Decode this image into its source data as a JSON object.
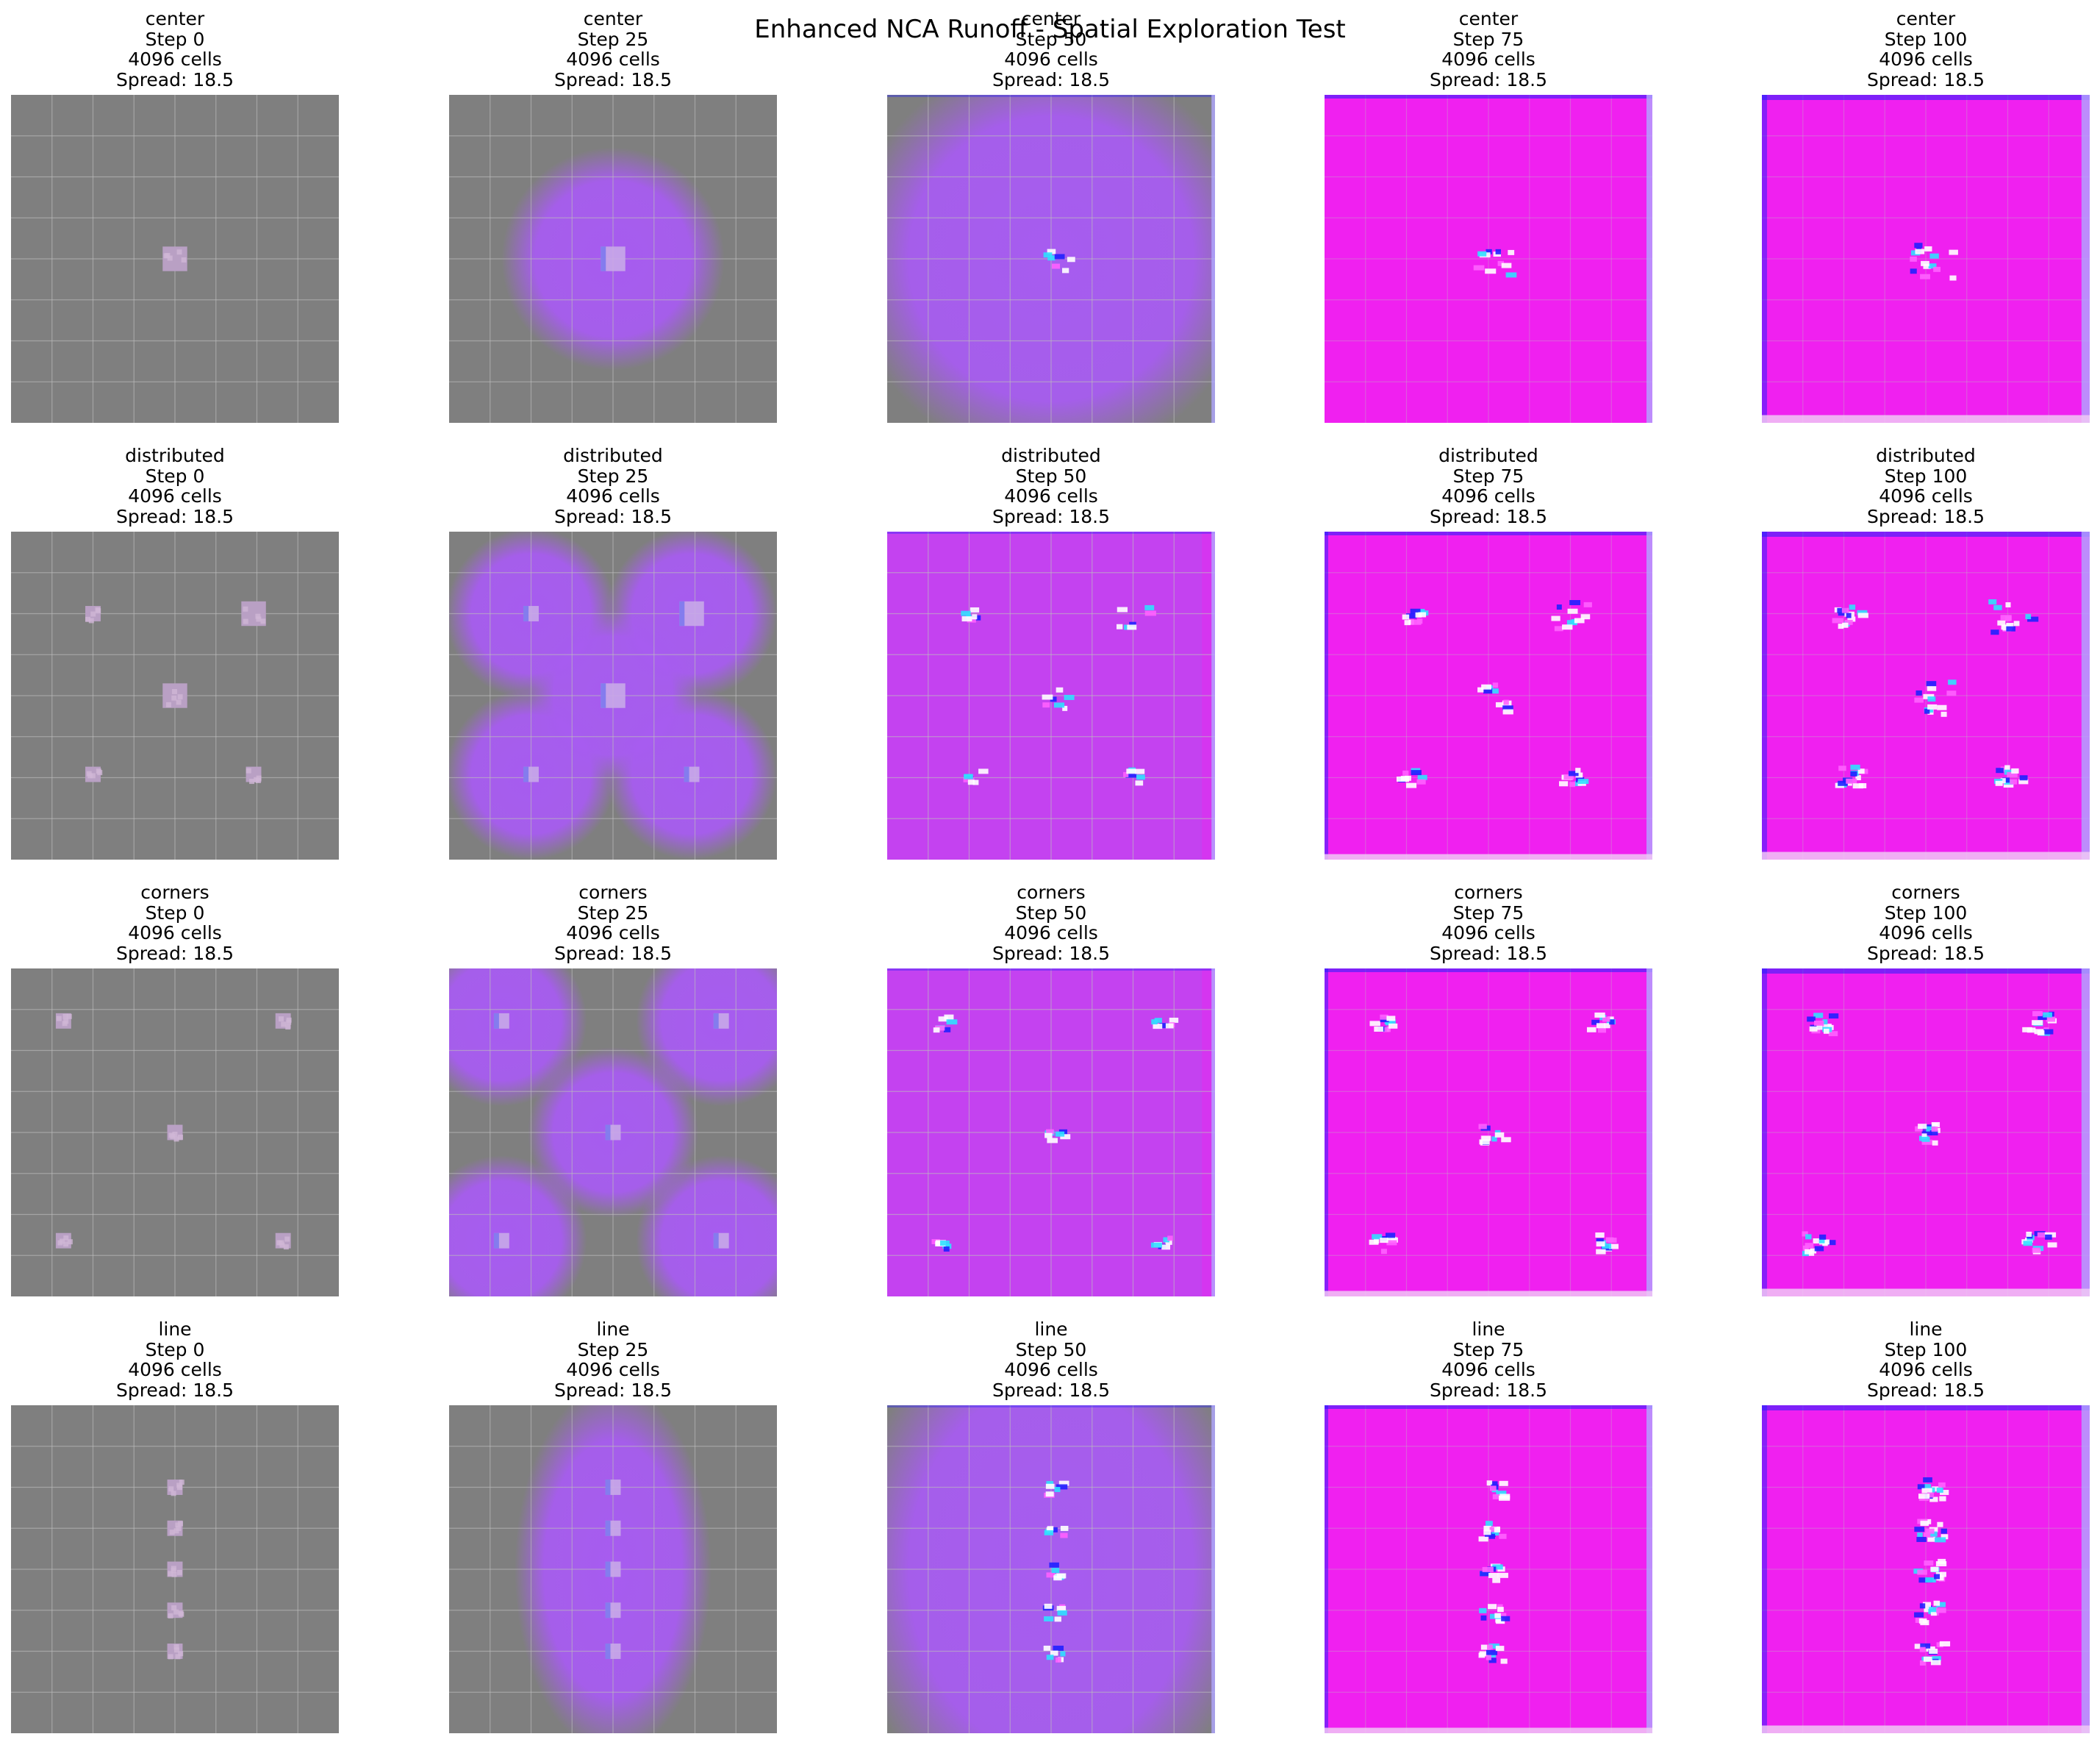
{
  "figure": {
    "title": "Enhanced NCA Runoff - Spatial Exploration Test",
    "colors": {
      "background_initial": "#7f7f7f",
      "diffused_purple": "#a75cf0",
      "saturated_magenta": "#f020f0",
      "seed_block": "#b9a0c4",
      "grid_line": "#bdbdbd",
      "artifact_cyan": "#30e0ff",
      "artifact_blue": "#2020ff",
      "artifact_white": "#ffffff"
    }
  },
  "chart_data": {
    "type": "heatmap",
    "title": "Enhanced NCA Runoff - Spatial Exploration Test",
    "grid_rows": [
      "center",
      "distributed",
      "corners",
      "line"
    ],
    "grid_cols": [
      "Step 0",
      "Step 25",
      "Step 50",
      "Step 75",
      "Step 100"
    ],
    "grid_size": 64,
    "panels": [
      {
        "id": "center-0",
        "pattern": "center",
        "step": 0,
        "title": [
          "center",
          "Step 0",
          "4096 cells",
          "Spread: 18.5"
        ]
      },
      {
        "id": "center-25",
        "pattern": "center",
        "step": 25,
        "title": [
          "center",
          "Step 25",
          "4096 cells",
          "Spread: 18.5"
        ]
      },
      {
        "id": "center-50",
        "pattern": "center",
        "step": 50,
        "title": [
          "center",
          "Step 50",
          "4096 cells",
          "Spread: 18.5"
        ]
      },
      {
        "id": "center-75",
        "pattern": "center",
        "step": 75,
        "title": [
          "center",
          "Step 75",
          "4096 cells",
          "Spread: 18.5"
        ]
      },
      {
        "id": "center-100",
        "pattern": "center",
        "step": 100,
        "title": [
          "center",
          "Step 100",
          "4096 cells",
          "Spread: 18.5"
        ]
      },
      {
        "id": "distributed-0",
        "pattern": "distributed",
        "step": 0,
        "title": [
          "distributed",
          "Step 0",
          "4096 cells",
          "Spread: 18.5"
        ]
      },
      {
        "id": "distributed-25",
        "pattern": "distributed",
        "step": 25,
        "title": [
          "distributed",
          "Step 25",
          "4096 cells",
          "Spread: 18.5"
        ]
      },
      {
        "id": "distributed-50",
        "pattern": "distributed",
        "step": 50,
        "title": [
          "distributed",
          "Step 50",
          "4096 cells",
          "Spread: 18.5"
        ]
      },
      {
        "id": "distributed-75",
        "pattern": "distributed",
        "step": 75,
        "title": [
          "distributed",
          "Step 75",
          "4096 cells",
          "Spread: 18.5"
        ]
      },
      {
        "id": "distributed-100",
        "pattern": "distributed",
        "step": 100,
        "title": [
          "distributed",
          "Step 100",
          "4096 cells",
          "Spread: 18.5"
        ]
      },
      {
        "id": "corners-0",
        "pattern": "corners",
        "step": 0,
        "title": [
          "corners",
          "Step 0",
          "4096 cells",
          "Spread: 18.5"
        ]
      },
      {
        "id": "corners-25",
        "pattern": "corners",
        "step": 25,
        "title": [
          "corners",
          "Step 25",
          "4096 cells",
          "Spread: 18.5"
        ]
      },
      {
        "id": "corners-50",
        "pattern": "corners",
        "step": 50,
        "title": [
          "corners",
          "Step 50",
          "4096 cells",
          "Spread: 18.5"
        ]
      },
      {
        "id": "corners-75",
        "pattern": "corners",
        "step": 75,
        "title": [
          "corners",
          "Step 75",
          "4096 cells",
          "Spread: 18.5"
        ]
      },
      {
        "id": "corners-100",
        "pattern": "corners",
        "step": 100,
        "title": [
          "corners",
          "Step 100",
          "4096 cells",
          "Spread: 18.5"
        ]
      },
      {
        "id": "line-0",
        "pattern": "line",
        "step": 0,
        "title": [
          "line",
          "Step 0",
          "4096 cells",
          "Spread: 18.5"
        ]
      },
      {
        "id": "line-25",
        "pattern": "line",
        "step": 25,
        "title": [
          "line",
          "Step 25",
          "4096 cells",
          "Spread: 18.5"
        ]
      },
      {
        "id": "line-50",
        "pattern": "line",
        "step": 50,
        "title": [
          "line",
          "Step 50",
          "4096 cells",
          "Spread: 18.5"
        ]
      },
      {
        "id": "line-75",
        "pattern": "line",
        "step": 75,
        "title": [
          "line",
          "Step 75",
          "4096 cells",
          "Spread: 18.5"
        ]
      },
      {
        "id": "line-100",
        "pattern": "line",
        "step": 100,
        "title": [
          "line",
          "Step 100",
          "4096 cells",
          "Spread: 18.5"
        ]
      }
    ],
    "seeds": {
      "center": [
        {
          "x": 0.5,
          "y": 0.5,
          "size": "large"
        }
      ],
      "distributed": [
        {
          "x": 0.25,
          "y": 0.25,
          "size": "small"
        },
        {
          "x": 0.74,
          "y": 0.25,
          "size": "large"
        },
        {
          "x": 0.5,
          "y": 0.5,
          "size": "large"
        },
        {
          "x": 0.25,
          "y": 0.74,
          "size": "small"
        },
        {
          "x": 0.74,
          "y": 0.74,
          "size": "small"
        }
      ],
      "corners": [
        {
          "x": 0.16,
          "y": 0.16,
          "size": "small"
        },
        {
          "x": 0.83,
          "y": 0.16,
          "size": "small"
        },
        {
          "x": 0.5,
          "y": 0.5,
          "size": "small"
        },
        {
          "x": 0.16,
          "y": 0.83,
          "size": "small"
        },
        {
          "x": 0.83,
          "y": 0.83,
          "size": "small"
        }
      ],
      "line": [
        {
          "x": 0.5,
          "y": 0.25,
          "size": "small"
        },
        {
          "x": 0.5,
          "y": 0.375,
          "size": "small"
        },
        {
          "x": 0.5,
          "y": 0.5,
          "size": "small"
        },
        {
          "x": 0.5,
          "y": 0.625,
          "size": "small"
        },
        {
          "x": 0.5,
          "y": 0.75,
          "size": "small"
        }
      ]
    },
    "grid": "on",
    "legend": "none"
  }
}
